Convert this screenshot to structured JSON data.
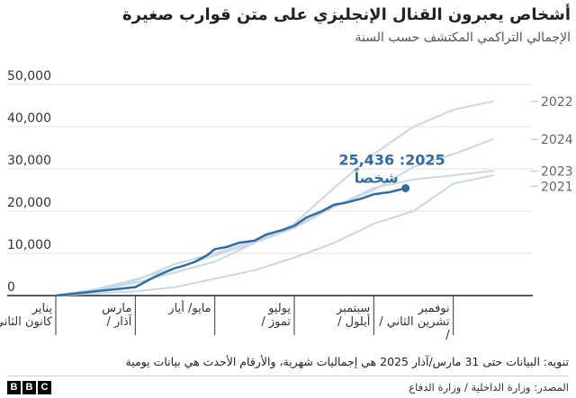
{
  "header": {
    "title": "أشخاص يعبرون القنال الإنجليزي على متن قوارب صغيرة",
    "subtitle": "الإجمالي التراكمي المكتشف حسب السنة"
  },
  "footer": {
    "note": "تنويه: البيانات حتى 31 مارس/آذار 2025 هي إجماليات شهرية، والأرقام الأحدث هي بيانات يومية",
    "source": "المصدر: وزارة الداخلية / وزارة الدفاع",
    "logo_letters": [
      "B",
      "B",
      "C"
    ]
  },
  "chart_data": {
    "type": "line",
    "y_ticks": [
      0,
      10000,
      20000,
      30000,
      40000,
      50000
    ],
    "y_tick_labels": [
      "0",
      "10,000",
      "20,000",
      "30,000",
      "40,000",
      "50,000"
    ],
    "ylim": [
      0,
      50000
    ],
    "xlim": [
      0,
      12
    ],
    "x_ticks": [
      {
        "month": 0,
        "lines": [
          "يناير",
          "/ كانون الثاني"
        ]
      },
      {
        "month": 2,
        "lines": [
          "مارس",
          "/ آذار"
        ]
      },
      {
        "month": 4,
        "lines": [
          "مايو/ أيار"
        ]
      },
      {
        "month": 6,
        "lines": [
          "يوليو",
          "/ تموز"
        ]
      },
      {
        "month": 8,
        "lines": [
          "سبتمبر",
          "/ أيلول"
        ]
      },
      {
        "month": 10,
        "lines": [
          "نوفمبر",
          "/ تشرين الثاني",
          "/"
        ]
      }
    ],
    "colors": {
      "current": "#2e6da4",
      "past": "#c7d8e6",
      "grid": "#e0e0e0",
      "axis": "#222222"
    },
    "series": [
      {
        "name": "2022",
        "label": "2022",
        "points": [
          [
            0,
            0
          ],
          [
            1,
            1200
          ],
          [
            2,
            3000
          ],
          [
            3,
            5500
          ],
          [
            4,
            8000
          ],
          [
            5,
            12500
          ],
          [
            6,
            17000
          ],
          [
            7,
            25500
          ],
          [
            8,
            33500
          ],
          [
            9,
            40000
          ],
          [
            10,
            44000
          ],
          [
            11,
            46000
          ]
        ]
      },
      {
        "name": "2024",
        "label": "2024",
        "points": [
          [
            0,
            0
          ],
          [
            1,
            1200
          ],
          [
            2,
            3500
          ],
          [
            3,
            7500
          ],
          [
            4,
            10000
          ],
          [
            5,
            13000
          ],
          [
            6,
            16500
          ],
          [
            7,
            21000
          ],
          [
            8,
            25000
          ],
          [
            9,
            30500
          ],
          [
            10,
            33500
          ],
          [
            11,
            37000
          ]
        ]
      },
      {
        "name": "2023",
        "label": "2023",
        "points": [
          [
            0,
            0
          ],
          [
            1,
            1500
          ],
          [
            2,
            3800
          ],
          [
            3,
            6500
          ],
          [
            4,
            9500
          ],
          [
            5,
            12500
          ],
          [
            6,
            16000
          ],
          [
            7,
            21000
          ],
          [
            8,
            25500
          ],
          [
            9,
            27500
          ],
          [
            10,
            28500
          ],
          [
            11,
            29500
          ]
        ]
      },
      {
        "name": "2021",
        "label": "2021",
        "points": [
          [
            0,
            0
          ],
          [
            1,
            500
          ],
          [
            2,
            1000
          ],
          [
            3,
            2000
          ],
          [
            4,
            4000
          ],
          [
            5,
            6000
          ],
          [
            6,
            9000
          ],
          [
            7,
            12500
          ],
          [
            8,
            17000
          ],
          [
            9,
            20000
          ],
          [
            10,
            26500
          ],
          [
            11,
            28500
          ]
        ]
      },
      {
        "name": "2025",
        "current": true,
        "points": [
          [
            0,
            0
          ],
          [
            1,
            1000
          ],
          [
            2,
            2000
          ],
          [
            2.5,
            4500
          ],
          [
            3,
            6500
          ],
          [
            3.2,
            7000
          ],
          [
            3.5,
            8000
          ],
          [
            3.8,
            9500
          ],
          [
            4,
            11000
          ],
          [
            4.3,
            11500
          ],
          [
            4.6,
            12500
          ],
          [
            5,
            13000
          ],
          [
            5.3,
            14500
          ],
          [
            5.7,
            15500
          ],
          [
            6,
            16500
          ],
          [
            6.3,
            18500
          ],
          [
            6.7,
            20000
          ],
          [
            7,
            21500
          ],
          [
            7.3,
            22000
          ],
          [
            7.7,
            23000
          ],
          [
            8,
            24000
          ],
          [
            8.4,
            24500
          ],
          [
            8.8,
            25436
          ]
        ]
      }
    ],
    "annotation": {
      "series": "2025",
      "year": "2025",
      "value_label": "25,436",
      "unit_label": "شخصاً"
    }
  }
}
